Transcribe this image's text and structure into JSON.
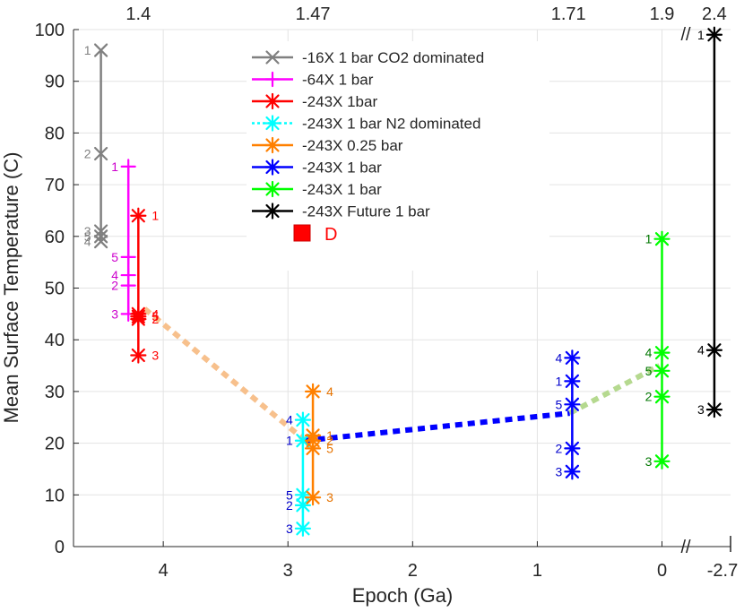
{
  "chart_data": {
    "type": "scatter",
    "title": "",
    "xlabel": "Epoch (Ga)",
    "ylabel": "Mean Surface Temperature (C)",
    "xlim": [
      4.72,
      -0.55
    ],
    "ylim": [
      0,
      100
    ],
    "x_ticks": [
      4,
      3,
      2,
      1,
      0
    ],
    "x_tick_labels": [
      "4",
      "3",
      "2",
      "1",
      "0"
    ],
    "x_tick_extra": {
      "value": -0.52,
      "label": "-2.7"
    },
    "y_ticks": [
      0,
      10,
      20,
      30,
      40,
      50,
      60,
      70,
      80,
      90,
      100
    ],
    "y_tick_labels": [
      "0",
      "10",
      "20",
      "30",
      "40",
      "50",
      "60",
      "70",
      "80",
      "90",
      "100"
    ],
    "top_axis": {
      "ticks": [
        4.2,
        2.8,
        0.75,
        0,
        -0.42
      ],
      "labels": [
        "1.4",
        "1.47",
        "1.71",
        "1.9",
        "2.4"
      ]
    },
    "axis_break_symbol": "//",
    "series": [
      {
        "name": "-16X 1 bar CO2 dominated",
        "color": "#808080",
        "marker": "x",
        "label_color": "#808080",
        "label_side": "left",
        "points": [
          {
            "x": 4.5,
            "y": 96,
            "label": "1"
          },
          {
            "x": 4.5,
            "y": 76,
            "label": "2"
          },
          {
            "x": 4.5,
            "y": 61,
            "label": "3"
          },
          {
            "x": 4.5,
            "y": 59,
            "label": "4"
          },
          {
            "x": 4.5,
            "y": 60,
            "label": "5"
          }
        ],
        "range": [
          59,
          96
        ]
      },
      {
        "name": "-64X 1 bar",
        "color": "#ff00ff",
        "marker": "plus",
        "label_color": "#cc00cc",
        "label_side": "left",
        "points": [
          {
            "x": 4.28,
            "y": 73.5,
            "label": "1"
          },
          {
            "x": 4.28,
            "y": 50.5,
            "label": "2"
          },
          {
            "x": 4.28,
            "y": 45,
            "label": "3"
          },
          {
            "x": 4.28,
            "y": 52.5,
            "label": "4"
          },
          {
            "x": 4.28,
            "y": 56,
            "label": "5"
          }
        ],
        "range": [
          45,
          73.5
        ]
      },
      {
        "name": "-243X 1bar",
        "color": "#ff0000",
        "marker": "star",
        "label_color": "#ff0000",
        "label_side": "right",
        "points": [
          {
            "x": 4.2,
            "y": 64,
            "label": "1"
          },
          {
            "x": 4.2,
            "y": 44,
            "label": "2"
          },
          {
            "x": 4.2,
            "y": 37,
            "label": "3"
          },
          {
            "x": 4.2,
            "y": 45,
            "label": "4"
          },
          {
            "x": 4.2,
            "y": 44.5,
            "label": "5"
          }
        ],
        "range": [
          37,
          64
        ]
      },
      {
        "name": "-243X 1 bar N2 dominated",
        "color": "#00ffff",
        "marker": "star",
        "label_color": "#0000cc",
        "label_side": "left",
        "points": [
          {
            "x": 2.88,
            "y": 20.5,
            "label": "1"
          },
          {
            "x": 2.88,
            "y": 8,
            "label": "2"
          },
          {
            "x": 2.88,
            "y": 3.5,
            "label": "3"
          },
          {
            "x": 2.88,
            "y": 24.5,
            "label": "4"
          },
          {
            "x": 2.88,
            "y": 10,
            "label": "5"
          }
        ],
        "range": [
          3.5,
          24.5
        ]
      },
      {
        "name": "-243X 0.25 bar",
        "color": "#ff8000",
        "marker": "star",
        "label_color": "#e67300",
        "label_side": "right",
        "points": [
          {
            "x": 2.8,
            "y": 21.5,
            "label": "1"
          },
          {
            "x": 2.8,
            "y": 20.5,
            "label": "2"
          },
          {
            "x": 2.8,
            "y": 9.5,
            "label": "3"
          },
          {
            "x": 2.8,
            "y": 30,
            "label": "4"
          },
          {
            "x": 2.8,
            "y": 19,
            "label": "5"
          }
        ],
        "range": [
          9.5,
          30
        ]
      },
      {
        "name": "-243X 1 bar",
        "color": "#0000ff",
        "marker": "star",
        "label_color": "#0000cc",
        "label_side": "left",
        "points": [
          {
            "x": 0.72,
            "y": 32,
            "label": "1"
          },
          {
            "x": 0.72,
            "y": 19,
            "label": "2"
          },
          {
            "x": 0.72,
            "y": 14.5,
            "label": "3"
          },
          {
            "x": 0.72,
            "y": 36.5,
            "label": "4"
          },
          {
            "x": 0.72,
            "y": 27.5,
            "label": "5"
          }
        ],
        "range": [
          14.5,
          36.5
        ]
      },
      {
        "name": "-243X 1 bar",
        "color": "#00ff00",
        "marker": "star",
        "label_color": "#007700",
        "label_side": "left",
        "points": [
          {
            "x": 0,
            "y": 59.5,
            "label": "1"
          },
          {
            "x": 0,
            "y": 29,
            "label": "2"
          },
          {
            "x": 0,
            "y": 16.5,
            "label": "3"
          },
          {
            "x": 0,
            "y": 37.5,
            "label": "4"
          },
          {
            "x": 0,
            "y": 34,
            "label": "5"
          }
        ],
        "range": [
          16.5,
          59.5
        ]
      },
      {
        "name": "-243X Future 1 bar",
        "color": "#000000",
        "marker": "star",
        "label_color": "#000000",
        "label_side": "left",
        "points": [
          {
            "x": -0.42,
            "y": 99,
            "label": "1"
          },
          {
            "x": -0.42,
            "y": 26.5,
            "label": "3"
          },
          {
            "x": -0.42,
            "y": 38,
            "label": "4"
          }
        ],
        "range": [
          26.5,
          99
        ]
      }
    ],
    "trend_lines": [
      {
        "color": "#f7c08c",
        "points": [
          [
            4.15,
            46
          ],
          [
            2.86,
            20.5
          ]
        ]
      },
      {
        "color": "#0000ff",
        "points": [
          [
            2.86,
            20.5
          ],
          [
            0.74,
            25.8
          ]
        ]
      },
      {
        "color": "#b5d98f",
        "points": [
          [
            0.74,
            25.8
          ],
          [
            0.02,
            35
          ]
        ]
      }
    ],
    "legend": {
      "position": "top-center",
      "extra_entry": {
        "label": "D",
        "color": "#ff0000",
        "marker": "square"
      }
    }
  }
}
